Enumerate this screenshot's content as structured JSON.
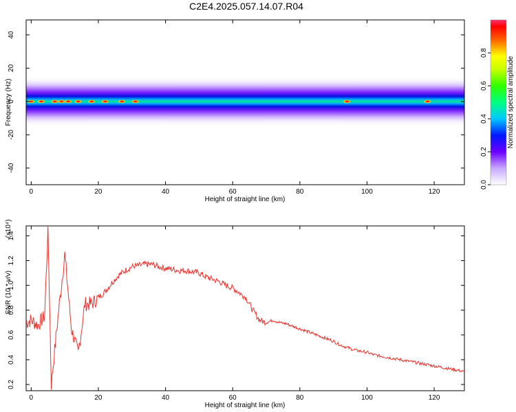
{
  "chart_data": [
    {
      "type": "heatmap",
      "title": "C2E4.2025.057.14.07.R04",
      "xlabel": "Height of straight line (km)",
      "ylabel": "Frequency (Hz)",
      "xlim": [
        -1.5,
        129
      ],
      "ylim": [
        -50,
        49
      ],
      "xticks": [
        "0",
        "20",
        "40",
        "60",
        "80",
        "100",
        "120"
      ],
      "yticks": [
        "-40",
        "-20",
        "0",
        "20",
        "40"
      ],
      "band_center_hz": 0,
      "band_halfwidth_hz": 5,
      "hotspots_km": [
        0,
        3,
        7,
        9,
        11,
        14,
        18,
        22,
        27,
        31,
        94,
        118
      ],
      "colorbar": {
        "label": "Normalized spectral amplitude",
        "range": [
          0,
          1
        ],
        "ticks": [
          "0.0",
          "0.2",
          "0.4",
          "0.6",
          "0.8"
        ]
      }
    },
    {
      "type": "line",
      "xlabel": "Height of straight line (km)",
      "ylabel": "SNR (10 * v/v)",
      "yscale_label": "(x10⁴)",
      "xlim": [
        -1.5,
        129
      ],
      "ylim": [
        0.15,
        1.48
      ],
      "xticks": [
        "0",
        "20",
        "40",
        "60",
        "80",
        "100",
        "120"
      ],
      "yticks": [
        "0.2",
        "0.4",
        "0.6",
        "0.8",
        "1.0",
        "1.2",
        "1.4"
      ],
      "color": "#e8312c",
      "x": [
        -1.5,
        0,
        2,
        4,
        5,
        6,
        8,
        10,
        12,
        14,
        16,
        18,
        20,
        22,
        24,
        26,
        28,
        30,
        32,
        34,
        36,
        38,
        40,
        42,
        44,
        46,
        48,
        50,
        52,
        54,
        56,
        58,
        60,
        62,
        64,
        66,
        68,
        70,
        72,
        74,
        76,
        78,
        80,
        82,
        84,
        86,
        88,
        90,
        92,
        94,
        96,
        98,
        100,
        102,
        104,
        106,
        108,
        110,
        112,
        114,
        116,
        118,
        120,
        122,
        124,
        126,
        128,
        129
      ],
      "y": [
        0.7,
        0.72,
        0.68,
        0.75,
        1.46,
        0.2,
        0.75,
        1.25,
        0.65,
        0.45,
        0.85,
        0.85,
        0.9,
        0.95,
        1.02,
        1.08,
        1.12,
        1.15,
        1.16,
        1.17,
        1.17,
        1.15,
        1.14,
        1.13,
        1.12,
        1.12,
        1.11,
        1.1,
        1.07,
        1.05,
        1.03,
        1.0,
        0.98,
        0.94,
        0.9,
        0.8,
        0.72,
        0.7,
        0.72,
        0.7,
        0.69,
        0.67,
        0.65,
        0.63,
        0.61,
        0.59,
        0.57,
        0.55,
        0.52,
        0.5,
        0.48,
        0.47,
        0.46,
        0.44,
        0.43,
        0.42,
        0.41,
        0.4,
        0.39,
        0.38,
        0.37,
        0.36,
        0.35,
        0.34,
        0.33,
        0.32,
        0.31,
        0.3
      ]
    }
  ]
}
